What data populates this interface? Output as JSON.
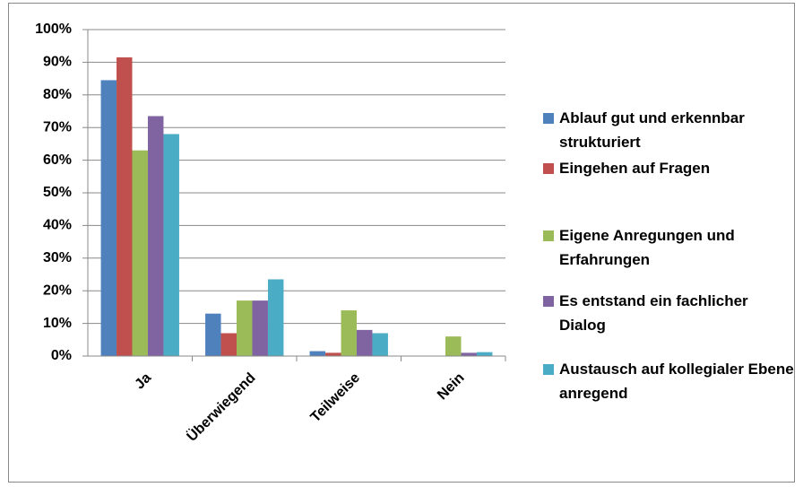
{
  "chart_data": {
    "type": "bar",
    "categories": [
      "Ja",
      "Überwiegend",
      "Teilweise",
      "Nein"
    ],
    "series": [
      {
        "name": "Ablauf gut und erkennbar strukturiert",
        "color": "#4f81bd",
        "values": [
          84.5,
          13,
          1.5,
          0
        ]
      },
      {
        "name": "Eingehen auf Fragen",
        "color": "#c0504d",
        "values": [
          91.5,
          7,
          1,
          0
        ]
      },
      {
        "name": "Eigene Anregungen und Erfahrungen",
        "color": "#9bbb59",
        "values": [
          63,
          17,
          14,
          6
        ]
      },
      {
        "name": "Es entstand ein fachlicher Dialog",
        "color": "#8064a2",
        "values": [
          73.5,
          17,
          8,
          1
        ]
      },
      {
        "name": "Austausch auf kollegialer Ebene anregend",
        "color": "#4bacc6",
        "values": [
          68,
          23.5,
          7,
          1.2
        ]
      }
    ],
    "ylim": [
      0,
      100
    ],
    "yticks": [
      {
        "value": 0,
        "label": "0%"
      },
      {
        "value": 10,
        "label": "10%"
      },
      {
        "value": 20,
        "label": "20%"
      },
      {
        "value": 30,
        "label": "30%"
      },
      {
        "value": 40,
        "label": "40%"
      },
      {
        "value": 50,
        "label": "50%"
      },
      {
        "value": 60,
        "label": "60%"
      },
      {
        "value": 70,
        "label": "70%"
      },
      {
        "value": 80,
        "label": "80%"
      },
      {
        "value": 90,
        "label": "90%"
      },
      {
        "value": 100,
        "label": "100%"
      }
    ],
    "grid": true,
    "legend": "right"
  }
}
